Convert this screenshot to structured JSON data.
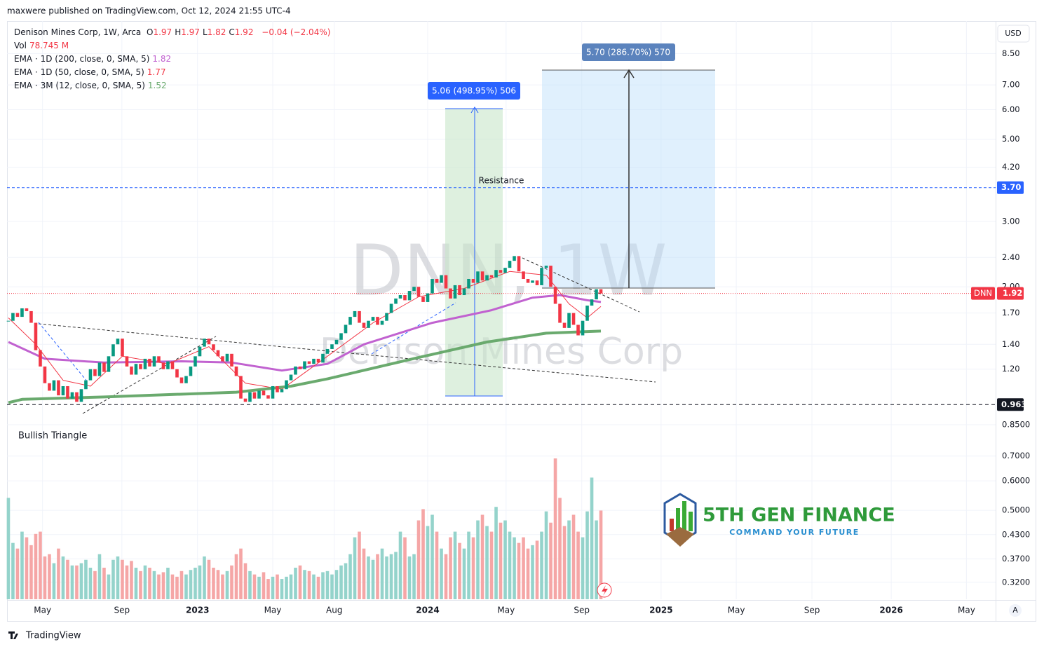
{
  "header": {
    "published": "maxwere published on TradingView.com, Oct 12, 2024 21:55 UTC-4",
    "currency": "USD",
    "brand": "TradingView",
    "auto": "A"
  },
  "legend": {
    "symbol": "Denison Mines Corp, 1W, Arca",
    "ohlc": [
      {
        "key": "O",
        "value": "1.97"
      },
      {
        "key": "H",
        "value": "1.97"
      },
      {
        "key": "L",
        "value": "1.82"
      },
      {
        "key": "C",
        "value": "1.92"
      }
    ],
    "change": "−0.04 (−2.04%)",
    "vol_key": "Vol",
    "vol_value": "78.745 M"
  },
  "logo": {
    "title": "5TH GEN FINANCE",
    "tagline": "COMMAND YOUR FUTURE"
  },
  "chart_data": {
    "type": "candlestick",
    "log": true,
    "watermark": {
      "symbol": "DNN, 1W",
      "name": "Denison Mines Corp"
    },
    "annotations": {
      "range1": "5.06 (498.95%) 506",
      "range2": "5.70 (286.70%) 570",
      "resistance": "Resistance",
      "pattern": "Bullish Triangle"
    },
    "up_color": "#089981",
    "down_color": "#f23645",
    "vol_up_color": "#94d3cb",
    "vol_down_color": "#f5a6a6",
    "closes": [
      1.62,
      1.7,
      1.66,
      1.75,
      1.72,
      1.6,
      1.35,
      1.22,
      1.1,
      1.05,
      1.12,
      1.02,
      1.08,
      1.0,
      1.04,
      0.98,
      1.06,
      1.12,
      1.2,
      1.15,
      1.25,
      1.18,
      1.3,
      1.4,
      1.45,
      1.3,
      1.22,
      1.16,
      1.24,
      1.2,
      1.28,
      1.22,
      1.3,
      1.25,
      1.2,
      1.26,
      1.2,
      1.14,
      1.1,
      1.15,
      1.22,
      1.3,
      1.38,
      1.45,
      1.4,
      1.35,
      1.3,
      1.26,
      1.32,
      1.22,
      1.15,
      1.0,
      0.98,
      1.04,
      1.0,
      1.05,
      1.02,
      1.0,
      1.08,
      1.04,
      1.06,
      1.12,
      1.16,
      1.22,
      1.2,
      1.26,
      1.24,
      1.28,
      1.25,
      1.32,
      1.36,
      1.4,
      1.44,
      1.5,
      1.58,
      1.66,
      1.72,
      1.6,
      1.55,
      1.62,
      1.66,
      1.58,
      1.62,
      1.7,
      1.8,
      1.86,
      1.9,
      1.84,
      1.95,
      2.0,
      1.88,
      1.82,
      1.92,
      2.1,
      2.05,
      2.15,
      1.98,
      1.86,
      2.02,
      1.9,
      1.98,
      2.1,
      2.05,
      2.2,
      2.08,
      2.15,
      2.12,
      2.22,
      2.18,
      2.25,
      2.35,
      2.42,
      2.2,
      2.1,
      2.05,
      2.08,
      2.02,
      2.25,
      2.28,
      2.0,
      1.8,
      1.6,
      1.55,
      1.7,
      1.58,
      1.48,
      1.62,
      1.78,
      1.85,
      1.97,
      1.92
    ],
    "volumes": [
      90,
      50,
      45,
      60,
      55,
      48,
      58,
      60,
      38,
      40,
      32,
      45,
      38,
      35,
      30,
      30,
      32,
      35,
      28,
      25,
      40,
      28,
      22,
      35,
      38,
      35,
      30,
      34,
      28,
      25,
      30,
      28,
      25,
      22,
      24,
      28,
      22,
      20,
      25,
      22,
      26,
      28,
      30,
      38,
      35,
      28,
      26,
      22,
      25,
      30,
      40,
      45,
      32,
      25,
      22,
      20,
      24,
      18,
      20,
      22,
      18,
      20,
      22,
      28,
      30,
      26,
      25,
      22,
      20,
      24,
      25,
      22,
      26,
      30,
      32,
      40,
      55,
      60,
      45,
      38,
      35,
      40,
      45,
      38,
      40,
      42,
      60,
      55,
      38,
      40,
      70,
      80,
      65,
      75,
      60,
      45,
      40,
      55,
      60,
      50,
      45,
      60,
      55,
      70,
      75,
      65,
      60,
      82,
      68,
      70,
      60,
      55,
      50,
      55,
      45,
      48,
      52,
      60,
      78,
      68,
      125,
      90,
      65,
      70,
      75,
      60,
      55,
      78,
      108,
      70,
      78.745
    ],
    "vol_lim": [
      0,
      140
    ],
    "ema": [
      {
        "name": "EMA · 1D (200, close, 0, SMA, 5)",
        "color": "#c162d0",
        "width": 3,
        "x": [
          0,
          8,
          21,
          38,
          49,
          60,
          70,
          78,
          93,
          106,
          115,
          121,
          127,
          130
        ],
        "values": [
          1.42,
          1.28,
          1.25,
          1.26,
          1.25,
          1.19,
          1.24,
          1.4,
          1.6,
          1.73,
          1.87,
          1.9,
          1.84,
          1.82
        ]
      },
      {
        "name": "EMA · 1D (50, close, 0, SMA, 5)",
        "color": "#f23645",
        "width": 1,
        "x": [
          0,
          6,
          12,
          18,
          25,
          35,
          44,
          52,
          60,
          70,
          80,
          90,
          100,
          110,
          118,
          123,
          127,
          130
        ],
        "values": [
          1.65,
          1.4,
          1.12,
          1.08,
          1.3,
          1.24,
          1.38,
          1.1,
          1.06,
          1.3,
          1.6,
          1.88,
          1.98,
          2.2,
          2.15,
          1.8,
          1.65,
          1.77
        ]
      },
      {
        "name": "EMA · 3M (12, close, 0, SMA, 5)",
        "color": "#6aaa6e",
        "width": 4,
        "x": [
          0,
          3,
          21,
          50,
          62,
          70,
          90,
          105,
          118,
          130
        ],
        "values": [
          0.975,
          0.995,
          1.01,
          1.04,
          1.08,
          1.13,
          1.29,
          1.42,
          1.5,
          1.52
        ]
      }
    ],
    "ylim": [
      0.288,
      10.4
    ],
    "yticks": [
      {
        "value": 8.5,
        "label": "8.50"
      },
      {
        "value": 7,
        "label": "7.00"
      },
      {
        "value": 6,
        "label": "6.00"
      },
      {
        "value": 5,
        "label": "5.00"
      },
      {
        "value": 4.2,
        "label": "4.20"
      },
      {
        "value": 3,
        "label": "3.00"
      },
      {
        "value": 2.4,
        "label": "2.40"
      },
      {
        "value": 2,
        "label": "2.00"
      },
      {
        "value": 1.7,
        "label": "1.70"
      },
      {
        "value": 1.4,
        "label": "1.40"
      },
      {
        "value": 1.2,
        "label": "1.20"
      },
      {
        "value": 0.85,
        "label": "0.8500"
      },
      {
        "value": 0.7,
        "label": "0.7000"
      },
      {
        "value": 0.6,
        "label": "0.6000"
      },
      {
        "value": 0.5,
        "label": "0.5000"
      },
      {
        "value": 0.43,
        "label": "0.4300"
      },
      {
        "value": 0.37,
        "label": "0.3700"
      },
      {
        "value": 0.32,
        "label": "0.3200"
      }
    ],
    "xlim": [
      -0.3,
      216.6
    ],
    "xticks": [
      {
        "value": 7.5,
        "label": "May"
      },
      {
        "value": 24.9,
        "label": "Sep"
      },
      {
        "value": 41.5,
        "label": "2023"
      },
      {
        "value": 58,
        "label": "May"
      },
      {
        "value": 71.5,
        "label": "Aug"
      },
      {
        "value": 92,
        "label": "2024"
      },
      {
        "value": 109.2,
        "label": "May"
      },
      {
        "value": 125.8,
        "label": "Sep"
      },
      {
        "value": 143.2,
        "label": "2025"
      },
      {
        "value": 159.7,
        "label": "May"
      },
      {
        "value": 176.3,
        "label": "Sep"
      },
      {
        "value": 193.7,
        "label": "2026"
      },
      {
        "value": 210.2,
        "label": "May"
      }
    ],
    "grid": true,
    "price_lines": [
      {
        "value": 3.7,
        "label": "3.70",
        "color": "#2962ff",
        "dash": "4 3"
      },
      {
        "value": 0.9632,
        "label": "0.9632",
        "color": "#131722",
        "dash": "5 4"
      }
    ],
    "last_price": {
      "name": "DNN",
      "value": 1.92,
      "color": "#f23645"
    }
  }
}
